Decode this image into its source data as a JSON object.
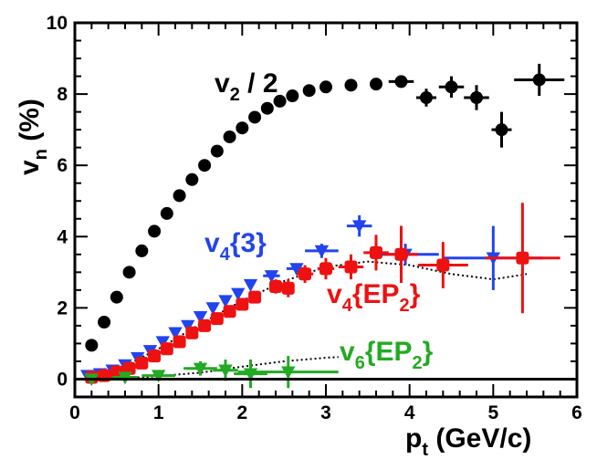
{
  "chart_data": {
    "type": "scatter",
    "title": "",
    "xlabel": "pt (GeV/c)",
    "ylabel": "vn (%)",
    "xlim": [
      0,
      6
    ],
    "ylim": [
      -0.5,
      10
    ],
    "xticks": [
      "0",
      "1",
      "2",
      "3",
      "4",
      "5",
      "6"
    ],
    "yticks": [
      "0",
      "2",
      "4",
      "6",
      "8",
      "10"
    ],
    "axis_labels": {
      "x_main": "p",
      "x_sub": "t",
      "x_units": " (GeV/c)",
      "y_main": "v",
      "y_sub": "n",
      "y_units": " (%)"
    },
    "annotations": {
      "v2": {
        "main": "v",
        "sub": "2",
        "rest": " / 2"
      },
      "v4_3": {
        "main": "v",
        "sub": "4",
        "rest": "{3}"
      },
      "v4_ep2": {
        "main": "v",
        "sub": "4",
        "rest": "{EP",
        "sub2": "2",
        "close": "}"
      },
      "v6_ep2": {
        "main": "v",
        "sub": "6",
        "rest": "{EP",
        "sub2": "2",
        "close": "}"
      }
    },
    "series": [
      {
        "name": "v2 / 2",
        "color": "#000000",
        "marker": "circle",
        "points": [
          {
            "x": 0.2,
            "y": 0.95
          },
          {
            "x": 0.35,
            "y": 1.6
          },
          {
            "x": 0.5,
            "y": 2.3
          },
          {
            "x": 0.65,
            "y": 3.0
          },
          {
            "x": 0.8,
            "y": 3.6
          },
          {
            "x": 0.95,
            "y": 4.15
          },
          {
            "x": 1.1,
            "y": 4.65
          },
          {
            "x": 1.25,
            "y": 5.15
          },
          {
            "x": 1.4,
            "y": 5.6
          },
          {
            "x": 1.55,
            "y": 6.0
          },
          {
            "x": 1.7,
            "y": 6.4
          },
          {
            "x": 1.85,
            "y": 6.8
          },
          {
            "x": 2.0,
            "y": 7.05
          },
          {
            "x": 2.15,
            "y": 7.35
          },
          {
            "x": 2.3,
            "y": 7.6
          },
          {
            "x": 2.45,
            "y": 7.8
          },
          {
            "x": 2.6,
            "y": 7.95
          },
          {
            "x": 2.8,
            "y": 8.1
          },
          {
            "x": 3.0,
            "y": 8.2
          },
          {
            "x": 3.3,
            "y": 8.25
          },
          {
            "x": 3.6,
            "y": 8.28
          },
          {
            "x": 3.9,
            "y": 8.35,
            "xerr": 0.15,
            "yerr": 0.15
          },
          {
            "x": 4.2,
            "y": 7.9,
            "xerr": 0.12,
            "yerr": 0.25
          },
          {
            "x": 4.5,
            "y": 8.2,
            "xerr": 0.15,
            "yerr": 0.3
          },
          {
            "x": 4.8,
            "y": 7.9,
            "xerr": 0.15,
            "yerr": 0.35
          },
          {
            "x": 5.1,
            "y": 7.0,
            "xerr": 0.12,
            "yerr": 0.5
          },
          {
            "x": 5.55,
            "y": 8.4,
            "xerr": 0.3,
            "yerr": 0.45
          }
        ]
      },
      {
        "name": "v4{3}",
        "color": "#2244ee",
        "marker": "triangle-down",
        "points": [
          {
            "x": 0.15,
            "y": 0.1
          },
          {
            "x": 0.3,
            "y": 0.15
          },
          {
            "x": 0.45,
            "y": 0.25
          },
          {
            "x": 0.6,
            "y": 0.4
          },
          {
            "x": 0.75,
            "y": 0.6
          },
          {
            "x": 0.9,
            "y": 0.8
          },
          {
            "x": 1.05,
            "y": 1.05
          },
          {
            "x": 1.2,
            "y": 1.3
          },
          {
            "x": 1.35,
            "y": 1.5
          },
          {
            "x": 1.5,
            "y": 1.75
          },
          {
            "x": 1.65,
            "y": 2.0
          },
          {
            "x": 1.8,
            "y": 2.2
          },
          {
            "x": 1.95,
            "y": 2.4
          },
          {
            "x": 2.1,
            "y": 2.65
          },
          {
            "x": 2.35,
            "y": 2.9,
            "xerr": 0.1,
            "yerr": 0.12
          },
          {
            "x": 2.65,
            "y": 3.1,
            "xerr": 0.12,
            "yerr": 0.15
          },
          {
            "x": 2.95,
            "y": 3.6,
            "xerr": 0.2,
            "yerr": 0.2
          },
          {
            "x": 3.4,
            "y": 4.3,
            "xerr": 0.15,
            "yerr": 0.3
          },
          {
            "x": 3.95,
            "y": 3.5,
            "xerr": 0.4,
            "yerr": 0.3
          },
          {
            "x": 5.0,
            "y": 3.4,
            "xerr": 0.6,
            "yerr": 0.9
          }
        ]
      },
      {
        "name": "v4{EP2}",
        "color": "#ee1111",
        "marker": "square",
        "points": [
          {
            "x": 0.2,
            "y": 0.05
          },
          {
            "x": 0.35,
            "y": 0.1
          },
          {
            "x": 0.5,
            "y": 0.2
          },
          {
            "x": 0.65,
            "y": 0.3
          },
          {
            "x": 0.8,
            "y": 0.45
          },
          {
            "x": 0.95,
            "y": 0.65
          },
          {
            "x": 1.1,
            "y": 0.85
          },
          {
            "x": 1.25,
            "y": 1.05
          },
          {
            "x": 1.4,
            "y": 1.3
          },
          {
            "x": 1.55,
            "y": 1.5
          },
          {
            "x": 1.7,
            "y": 1.7
          },
          {
            "x": 1.85,
            "y": 1.9
          },
          {
            "x": 2.0,
            "y": 2.1
          },
          {
            "x": 2.15,
            "y": 2.3
          },
          {
            "x": 2.4,
            "y": 2.6,
            "xerr": 0.05,
            "yerr": 0.2
          },
          {
            "x": 2.55,
            "y": 2.55,
            "xerr": 0.05,
            "yerr": 0.25
          },
          {
            "x": 2.75,
            "y": 2.95,
            "xerr": 0.1,
            "yerr": 0.25
          },
          {
            "x": 3.0,
            "y": 3.1,
            "xerr": 0.1,
            "yerr": 0.3
          },
          {
            "x": 3.3,
            "y": 3.15,
            "xerr": 0.15,
            "yerr": 0.35
          },
          {
            "x": 3.6,
            "y": 3.55,
            "xerr": 0.15,
            "yerr": 0.5
          },
          {
            "x": 3.9,
            "y": 3.5,
            "xerr": 0.2,
            "yerr": 0.8
          },
          {
            "x": 4.4,
            "y": 3.2,
            "xerr": 0.3,
            "yerr": 0.65
          },
          {
            "x": 5.35,
            "y": 3.4,
            "xerr": 0.45,
            "yerr": 1.55
          }
        ]
      },
      {
        "name": "v6{EP2}",
        "color": "#22aa22",
        "marker": "triangle-down",
        "points": [
          {
            "x": 0.2,
            "y": 0.0,
            "xerr": 0.1,
            "yerr": 0.05
          },
          {
            "x": 0.6,
            "y": 0.05,
            "xerr": 0.15,
            "yerr": 0.08
          },
          {
            "x": 1.0,
            "y": 0.1,
            "xerr": 0.2,
            "yerr": 0.1
          },
          {
            "x": 1.5,
            "y": 0.3,
            "xerr": 0.2,
            "yerr": 0.2
          },
          {
            "x": 1.8,
            "y": 0.25,
            "xerr": 0.15,
            "yerr": 0.3
          },
          {
            "x": 2.1,
            "y": 0.15,
            "xerr": 0.2,
            "yerr": 0.4
          },
          {
            "x": 2.55,
            "y": 0.2,
            "xerr": 0.6,
            "yerr": 0.45
          }
        ]
      }
    ],
    "curves": [
      {
        "name": "v4{EP2} model (dotted)",
        "color": "#000000",
        "style": "dotted",
        "points": [
          {
            "x": 0.15,
            "y": 0.05
          },
          {
            "x": 0.5,
            "y": 0.25
          },
          {
            "x": 1.0,
            "y": 0.85
          },
          {
            "x": 1.5,
            "y": 1.55
          },
          {
            "x": 2.0,
            "y": 2.2
          },
          {
            "x": 2.5,
            "y": 2.75
          },
          {
            "x": 3.0,
            "y": 3.15
          },
          {
            "x": 3.5,
            "y": 3.3
          },
          {
            "x": 4.0,
            "y": 3.2
          },
          {
            "x": 4.5,
            "y": 2.95
          },
          {
            "x": 5.0,
            "y": 2.8
          },
          {
            "x": 5.4,
            "y": 2.95
          }
        ]
      },
      {
        "name": "v6{EP2} model (dotted)",
        "color": "#000000",
        "style": "dotted",
        "points": [
          {
            "x": 0.15,
            "y": 0.0
          },
          {
            "x": 0.8,
            "y": 0.05
          },
          {
            "x": 1.5,
            "y": 0.18
          },
          {
            "x": 2.0,
            "y": 0.35
          },
          {
            "x": 2.5,
            "y": 0.5
          },
          {
            "x": 3.0,
            "y": 0.6
          },
          {
            "x": 3.15,
            "y": 0.62
          }
        ]
      }
    ]
  }
}
